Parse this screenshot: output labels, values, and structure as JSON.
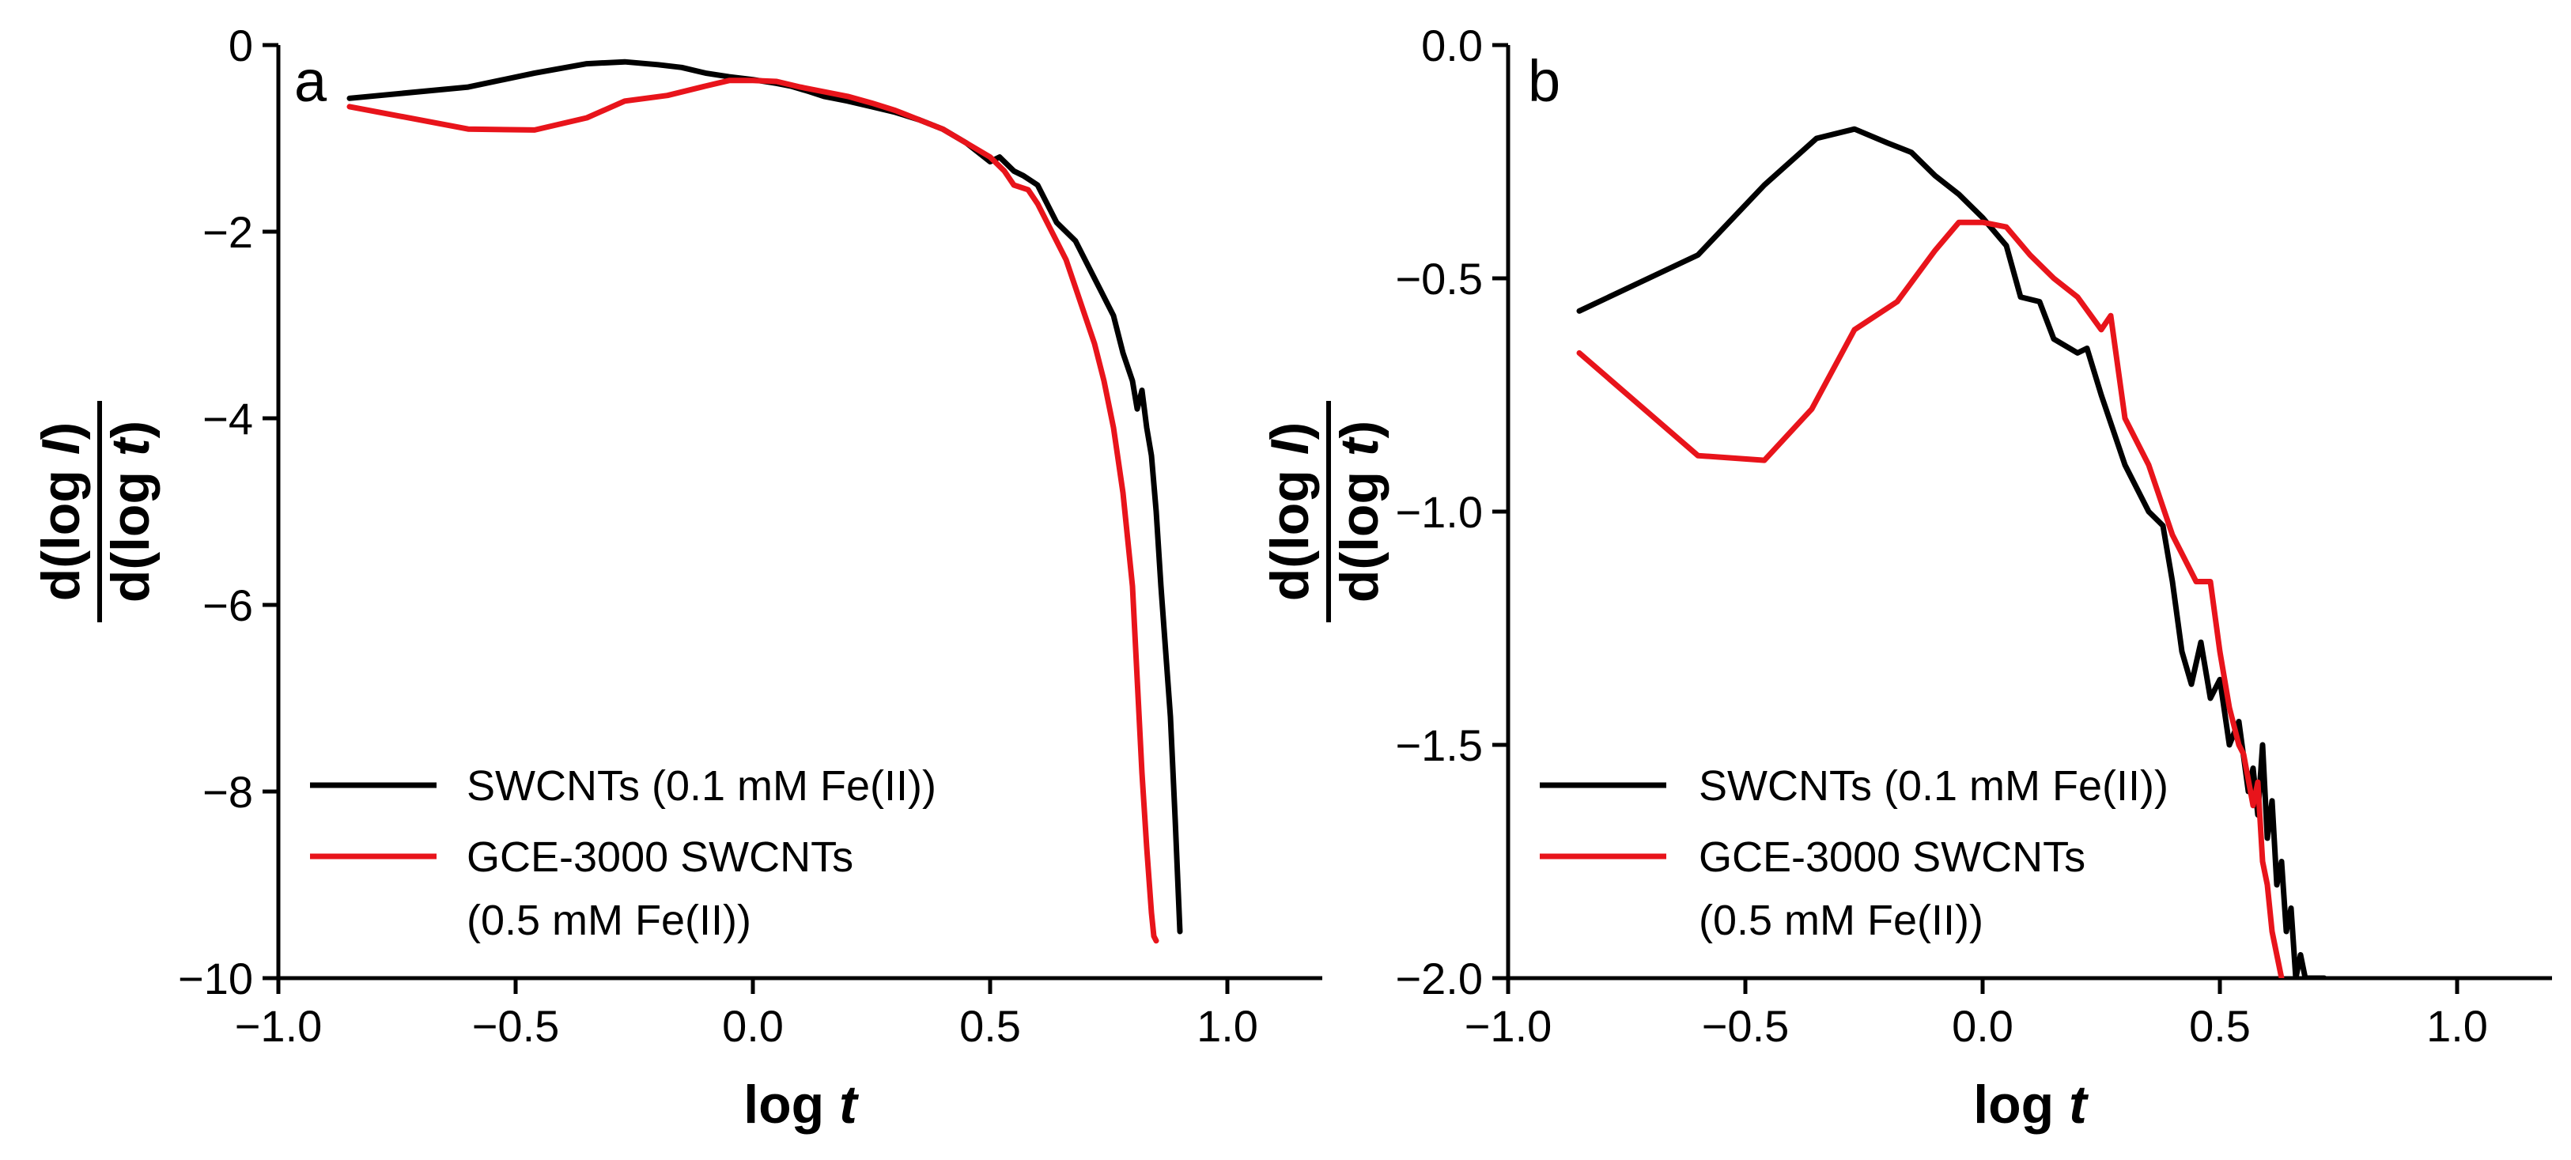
{
  "chart_data": [
    {
      "type": "line",
      "panel_label": "a",
      "xlabel": {
        "base": "log ",
        "var": "t"
      },
      "ylabel": {
        "numerator": {
          "base": "d(log ",
          "var": "I",
          "close": ")"
        },
        "denominator": {
          "base": "d(log ",
          "var": "t",
          "close": ")"
        }
      },
      "xlim": [
        -1.0,
        1.2
      ],
      "ylim": [
        -10,
        0
      ],
      "xticks": [
        -1.0,
        -0.5,
        0.0,
        0.5,
        1.0
      ],
      "xtick_labels": [
        "−1.0",
        "−0.5",
        "0.0",
        "0.5",
        "1.0"
      ],
      "yticks": [
        0,
        -2,
        -4,
        -6,
        -8,
        -10
      ],
      "ytick_labels": [
        "0",
        "−2",
        "−4",
        "−6",
        "−8",
        "−10"
      ],
      "legend_position": "lower-left",
      "series": [
        {
          "name": "SWCNTs (0.1 mM Fe(II))",
          "color": "#000000",
          "x": [
            -0.85,
            -0.6,
            -0.46,
            -0.35,
            -0.27,
            -0.2,
            -0.15,
            -0.1,
            -0.05,
            0.0,
            0.05,
            0.08,
            0.12,
            0.15,
            0.2,
            0.25,
            0.3,
            0.35,
            0.4,
            0.45,
            0.5,
            0.52,
            0.55,
            0.57,
            0.6,
            0.62,
            0.64,
            0.66,
            0.68,
            0.7,
            0.72,
            0.74,
            0.76,
            0.77,
            0.78,
            0.8,
            0.81,
            0.82,
            0.83,
            0.84,
            0.85,
            0.86,
            0.87,
            0.88,
            0.89,
            0.9
          ],
          "y": [
            -0.57,
            -0.45,
            -0.3,
            -0.2,
            -0.18,
            -0.21,
            -0.24,
            -0.3,
            -0.34,
            -0.37,
            -0.41,
            -0.44,
            -0.5,
            -0.55,
            -0.6,
            -0.66,
            -0.72,
            -0.8,
            -0.9,
            -1.05,
            -1.25,
            -1.2,
            -1.35,
            -1.4,
            -1.5,
            -1.7,
            -1.9,
            -2.0,
            -2.1,
            -2.3,
            -2.5,
            -2.7,
            -2.9,
            -3.1,
            -3.3,
            -3.6,
            -3.9,
            -3.7,
            -4.1,
            -4.4,
            -5.0,
            -5.8,
            -6.5,
            -7.2,
            -8.3,
            -9.5
          ]
        },
        {
          "name": "GCE-3000 SWCNTs\n(0.5 mM Fe(II))",
          "color": "#e8141b",
          "x": [
            -0.85,
            -0.6,
            -0.46,
            -0.35,
            -0.27,
            -0.18,
            -0.1,
            -0.05,
            0.0,
            0.05,
            0.1,
            0.15,
            0.2,
            0.25,
            0.3,
            0.35,
            0.4,
            0.45,
            0.5,
            0.53,
            0.55,
            0.58,
            0.6,
            0.62,
            0.64,
            0.66,
            0.68,
            0.7,
            0.72,
            0.74,
            0.76,
            0.78,
            0.8,
            0.81,
            0.82,
            0.83,
            0.84,
            0.845,
            0.85
          ],
          "y": [
            -0.66,
            -0.9,
            -0.91,
            -0.78,
            -0.6,
            -0.54,
            -0.44,
            -0.38,
            -0.38,
            -0.39,
            -0.45,
            -0.5,
            -0.55,
            -0.62,
            -0.7,
            -0.8,
            -0.9,
            -1.05,
            -1.2,
            -1.35,
            -1.5,
            -1.55,
            -1.7,
            -1.9,
            -2.1,
            -2.3,
            -2.6,
            -2.9,
            -3.2,
            -3.6,
            -4.1,
            -4.8,
            -5.8,
            -6.8,
            -7.8,
            -8.6,
            -9.3,
            -9.55,
            -9.6
          ]
        }
      ]
    },
    {
      "type": "line",
      "panel_label": "b",
      "xlabel": {
        "base": "log ",
        "var": "t"
      },
      "ylabel": {
        "numerator": {
          "base": "d(log ",
          "var": "I",
          "close": ")"
        },
        "denominator": {
          "base": "d(log ",
          "var": "t",
          "close": ")"
        }
      },
      "xlim": [
        -1.0,
        1.2
      ],
      "ylim": [
        -2.0,
        0.0
      ],
      "xticks": [
        -1.0,
        -0.5,
        0.0,
        0.5,
        1.0
      ],
      "xtick_labels": [
        "−1.0",
        "−0.5",
        "0.0",
        "0.5",
        "1.0"
      ],
      "yticks": [
        0.0,
        -0.5,
        -1.0,
        -1.5,
        -2.0
      ],
      "ytick_labels": [
        "0.0",
        "−0.5",
        "−1.0",
        "−1.5",
        "−2.0"
      ],
      "legend_position": "lower-left",
      "series": [
        {
          "name": "SWCNTs (0.1 mM Fe(II))",
          "color": "#000000",
          "x": [
            -0.85,
            -0.6,
            -0.46,
            -0.35,
            -0.27,
            -0.2,
            -0.15,
            -0.1,
            -0.05,
            0.0,
            0.05,
            0.08,
            0.12,
            0.15,
            0.2,
            0.22,
            0.25,
            0.3,
            0.35,
            0.38,
            0.4,
            0.42,
            0.44,
            0.46,
            0.48,
            0.5,
            0.52,
            0.54,
            0.56,
            0.57,
            0.58,
            0.59,
            0.6,
            0.61,
            0.62,
            0.63,
            0.64,
            0.65,
            0.66,
            0.67,
            0.68,
            0.7,
            0.72
          ],
          "y": [
            -0.57,
            -0.45,
            -0.3,
            -0.2,
            -0.18,
            -0.21,
            -0.23,
            -0.28,
            -0.32,
            -0.37,
            -0.43,
            -0.54,
            -0.55,
            -0.63,
            -0.66,
            -0.65,
            -0.75,
            -0.9,
            -1.0,
            -1.03,
            -1.15,
            -1.3,
            -1.37,
            -1.28,
            -1.4,
            -1.36,
            -1.5,
            -1.45,
            -1.6,
            -1.55,
            -1.65,
            -1.5,
            -1.7,
            -1.62,
            -1.8,
            -1.75,
            -1.9,
            -1.85,
            -2.0,
            -1.95,
            -2.0,
            -2.0,
            -2.0
          ]
        },
        {
          "name": "GCE-3000 SWCNTs\n(0.5 mM Fe(II))",
          "color": "#e8141b",
          "x": [
            -0.85,
            -0.6,
            -0.46,
            -0.36,
            -0.27,
            -0.18,
            -0.1,
            -0.05,
            0.0,
            0.05,
            0.1,
            0.15,
            0.2,
            0.25,
            0.27,
            0.3,
            0.35,
            0.4,
            0.45,
            0.48,
            0.5,
            0.52,
            0.54,
            0.55,
            0.57,
            0.58,
            0.59,
            0.6,
            0.61,
            0.62,
            0.63
          ],
          "y": [
            -0.66,
            -0.88,
            -0.89,
            -0.78,
            -0.61,
            -0.55,
            -0.44,
            -0.38,
            -0.38,
            -0.39,
            -0.45,
            -0.5,
            -0.54,
            -0.61,
            -0.58,
            -0.8,
            -0.9,
            -1.05,
            -1.15,
            -1.15,
            -1.3,
            -1.42,
            -1.5,
            -1.52,
            -1.63,
            -1.58,
            -1.75,
            -1.8,
            -1.9,
            -1.95,
            -2.0
          ]
        }
      ]
    }
  ]
}
